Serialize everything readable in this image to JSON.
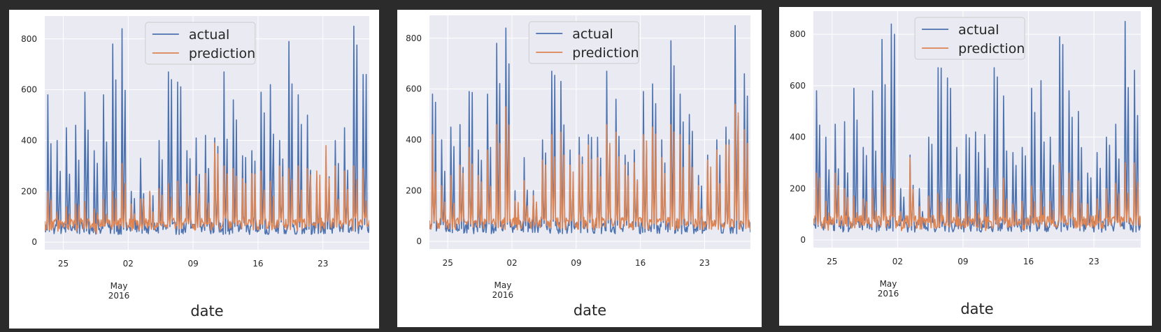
{
  "figure": {
    "panels": [
      {
        "title": "",
        "xlabel": "date"
      },
      {
        "title": "",
        "xlabel": "date"
      },
      {
        "title": "",
        "xlabel": "date"
      }
    ]
  },
  "colors": {
    "actual": "#4c72b0",
    "prediction": "#dd8452",
    "plot_background": "#eaeaf2",
    "grid": "#ffffff"
  },
  "chart_data": [
    {
      "type": "line",
      "title": "",
      "xlabel": "date",
      "ylabel": "",
      "xlim": [
        "2016-04-23",
        "2016-05-28"
      ],
      "ylim": [
        -30,
        890
      ],
      "xticks": [
        "2016-04-25",
        "2016-05-02",
        "2016-05-09",
        "2016-05-16",
        "2016-05-23"
      ],
      "xtick_labels": [
        "25",
        "02",
        "09",
        "16",
        "23"
      ],
      "x_secondary_label": [
        "May",
        "2016"
      ],
      "yticks": [
        0,
        200,
        400,
        600,
        800
      ],
      "grid": true,
      "legend": "top-center",
      "series": [
        {
          "name": "actual",
          "x": [
            "2016-04-23",
            "2016-04-24",
            "2016-04-25",
            "2016-04-26",
            "2016-04-27",
            "2016-04-28",
            "2016-04-29",
            "2016-04-30",
            "2016-05-01",
            "2016-05-02",
            "2016-05-03",
            "2016-05-04",
            "2016-05-05",
            "2016-05-06",
            "2016-05-07",
            "2016-05-08",
            "2016-05-09",
            "2016-05-10",
            "2016-05-11",
            "2016-05-12",
            "2016-05-13",
            "2016-05-14",
            "2016-05-15",
            "2016-05-16",
            "2016-05-17",
            "2016-05-18",
            "2016-05-19",
            "2016-05-20",
            "2016-05-21",
            "2016-05-22",
            "2016-05-23",
            "2016-05-24",
            "2016-05-25",
            "2016-05-26",
            "2016-05-27",
            "2016-05-28"
          ],
          "values": [
            580,
            400,
            450,
            460,
            590,
            360,
            580,
            780,
            840,
            200,
            330,
            200,
            400,
            670,
            630,
            360,
            410,
            420,
            410,
            670,
            560,
            340,
            360,
            590,
            620,
            400,
            790,
            580,
            500,
            260,
            340,
            400,
            450,
            850,
            660,
            380
          ]
        },
        {
          "name": "prediction",
          "x": [
            "2016-04-23",
            "2016-04-24",
            "2016-04-25",
            "2016-04-26",
            "2016-04-27",
            "2016-04-28",
            "2016-04-29",
            "2016-04-30",
            "2016-05-01",
            "2016-05-02",
            "2016-05-03",
            "2016-05-04",
            "2016-05-05",
            "2016-05-06",
            "2016-05-07",
            "2016-05-08",
            "2016-05-09",
            "2016-05-10",
            "2016-05-11",
            "2016-05-12",
            "2016-05-13",
            "2016-05-14",
            "2016-05-15",
            "2016-05-16",
            "2016-05-17",
            "2016-05-18",
            "2016-05-19",
            "2016-05-20",
            "2016-05-21",
            "2016-05-22",
            "2016-05-23",
            "2016-05-24",
            "2016-05-25",
            "2016-05-26",
            "2016-05-27",
            "2016-05-28"
          ],
          "values": [
            200,
            120,
            140,
            150,
            160,
            130,
            170,
            200,
            310,
            150,
            170,
            200,
            210,
            230,
            240,
            230,
            260,
            270,
            390,
            300,
            290,
            250,
            270,
            280,
            240,
            300,
            290,
            300,
            290,
            280,
            380,
            300,
            280,
            300,
            290,
            280
          ]
        }
      ]
    },
    {
      "type": "line",
      "title": "",
      "xlabel": "date",
      "ylabel": "",
      "xlim": [
        "2016-04-23",
        "2016-05-28"
      ],
      "ylim": [
        -30,
        890
      ],
      "xticks": [
        "2016-04-25",
        "2016-05-02",
        "2016-05-09",
        "2016-05-16",
        "2016-05-23"
      ],
      "xtick_labels": [
        "25",
        "02",
        "09",
        "16",
        "23"
      ],
      "x_secondary_label": [
        "May",
        "2016"
      ],
      "yticks": [
        0,
        200,
        400,
        600,
        800
      ],
      "grid": true,
      "legend": "top-center",
      "series": [
        {
          "name": "actual",
          "x": [
            "2016-04-23",
            "2016-04-24",
            "2016-04-25",
            "2016-04-26",
            "2016-04-27",
            "2016-04-28",
            "2016-04-29",
            "2016-04-30",
            "2016-05-01",
            "2016-05-02",
            "2016-05-03",
            "2016-05-04",
            "2016-05-05",
            "2016-05-06",
            "2016-05-07",
            "2016-05-08",
            "2016-05-09",
            "2016-05-10",
            "2016-05-11",
            "2016-05-12",
            "2016-05-13",
            "2016-05-14",
            "2016-05-15",
            "2016-05-16",
            "2016-05-17",
            "2016-05-18",
            "2016-05-19",
            "2016-05-20",
            "2016-05-21",
            "2016-05-22",
            "2016-05-23",
            "2016-05-24",
            "2016-05-25",
            "2016-05-26",
            "2016-05-27",
            "2016-05-28"
          ],
          "values": [
            580,
            400,
            450,
            460,
            590,
            360,
            580,
            780,
            840,
            200,
            330,
            200,
            400,
            670,
            630,
            360,
            410,
            420,
            410,
            670,
            560,
            340,
            360,
            590,
            620,
            400,
            790,
            580,
            500,
            260,
            340,
            400,
            450,
            850,
            660,
            380
          ]
        },
        {
          "name": "prediction",
          "x": [
            "2016-04-23",
            "2016-04-24",
            "2016-04-25",
            "2016-04-26",
            "2016-04-27",
            "2016-04-28",
            "2016-04-29",
            "2016-04-30",
            "2016-05-01",
            "2016-05-02",
            "2016-05-03",
            "2016-05-04",
            "2016-05-05",
            "2016-05-06",
            "2016-05-07",
            "2016-05-08",
            "2016-05-09",
            "2016-05-10",
            "2016-05-11",
            "2016-05-12",
            "2016-05-13",
            "2016-05-14",
            "2016-05-15",
            "2016-05-16",
            "2016-05-17",
            "2016-05-18",
            "2016-05-19",
            "2016-05-20",
            "2016-05-21",
            "2016-05-22",
            "2016-05-23",
            "2016-05-24",
            "2016-05-25",
            "2016-05-26",
            "2016-05-27",
            "2016-05-28"
          ],
          "values": [
            420,
            220,
            260,
            300,
            370,
            260,
            360,
            460,
            530,
            160,
            240,
            180,
            320,
            420,
            430,
            300,
            340,
            380,
            330,
            460,
            430,
            300,
            310,
            420,
            450,
            330,
            460,
            420,
            380,
            220,
            320,
            360,
            380,
            540,
            440,
            300
          ]
        }
      ]
    },
    {
      "type": "line",
      "title": "",
      "xlabel": "date",
      "ylabel": "",
      "xlim": [
        "2016-04-23",
        "2016-05-28"
      ],
      "ylim": [
        -30,
        890
      ],
      "xticks": [
        "2016-04-25",
        "2016-05-02",
        "2016-05-09",
        "2016-05-16",
        "2016-05-23"
      ],
      "xtick_labels": [
        "25",
        "02",
        "09",
        "16",
        "23"
      ],
      "x_secondary_label": [
        "May",
        "2016"
      ],
      "yticks": [
        0,
        200,
        400,
        600,
        800
      ],
      "grid": true,
      "legend": "top-center",
      "series": [
        {
          "name": "actual",
          "x": [
            "2016-04-23",
            "2016-04-24",
            "2016-04-25",
            "2016-04-26",
            "2016-04-27",
            "2016-04-28",
            "2016-04-29",
            "2016-04-30",
            "2016-05-01",
            "2016-05-02",
            "2016-05-03",
            "2016-05-04",
            "2016-05-05",
            "2016-05-06",
            "2016-05-07",
            "2016-05-08",
            "2016-05-09",
            "2016-05-10",
            "2016-05-11",
            "2016-05-12",
            "2016-05-13",
            "2016-05-14",
            "2016-05-15",
            "2016-05-16",
            "2016-05-17",
            "2016-05-18",
            "2016-05-19",
            "2016-05-20",
            "2016-05-21",
            "2016-05-22",
            "2016-05-23",
            "2016-05-24",
            "2016-05-25",
            "2016-05-26",
            "2016-05-27",
            "2016-05-28"
          ],
          "values": [
            580,
            400,
            450,
            460,
            590,
            360,
            580,
            780,
            840,
            200,
            330,
            200,
            400,
            670,
            630,
            360,
            410,
            420,
            410,
            670,
            560,
            340,
            360,
            590,
            620,
            400,
            790,
            580,
            500,
            260,
            340,
            400,
            450,
            850,
            660,
            380
          ]
        },
        {
          "name": "prediction",
          "x": [
            "2016-04-23",
            "2016-04-24",
            "2016-04-25",
            "2016-04-26",
            "2016-04-27",
            "2016-04-28",
            "2016-04-29",
            "2016-04-30",
            "2016-05-01",
            "2016-05-02",
            "2016-05-03",
            "2016-05-04",
            "2016-05-05",
            "2016-05-06",
            "2016-05-07",
            "2016-05-08",
            "2016-05-09",
            "2016-05-10",
            "2016-05-11",
            "2016-05-12",
            "2016-05-13",
            "2016-05-14",
            "2016-05-15",
            "2016-05-16",
            "2016-05-17",
            "2016-05-18",
            "2016-05-19",
            "2016-05-20",
            "2016-05-21",
            "2016-05-22",
            "2016-05-23",
            "2016-05-24",
            "2016-05-25",
            "2016-05-26",
            "2016-05-27",
            "2016-05-28"
          ],
          "values": [
            260,
            150,
            260,
            200,
            170,
            160,
            200,
            260,
            240,
            110,
            320,
            130,
            170,
            180,
            160,
            140,
            150,
            150,
            140,
            200,
            240,
            140,
            150,
            210,
            190,
            150,
            300,
            260,
            230,
            140,
            160,
            200,
            220,
            300,
            300,
            210
          ]
        }
      ]
    }
  ]
}
